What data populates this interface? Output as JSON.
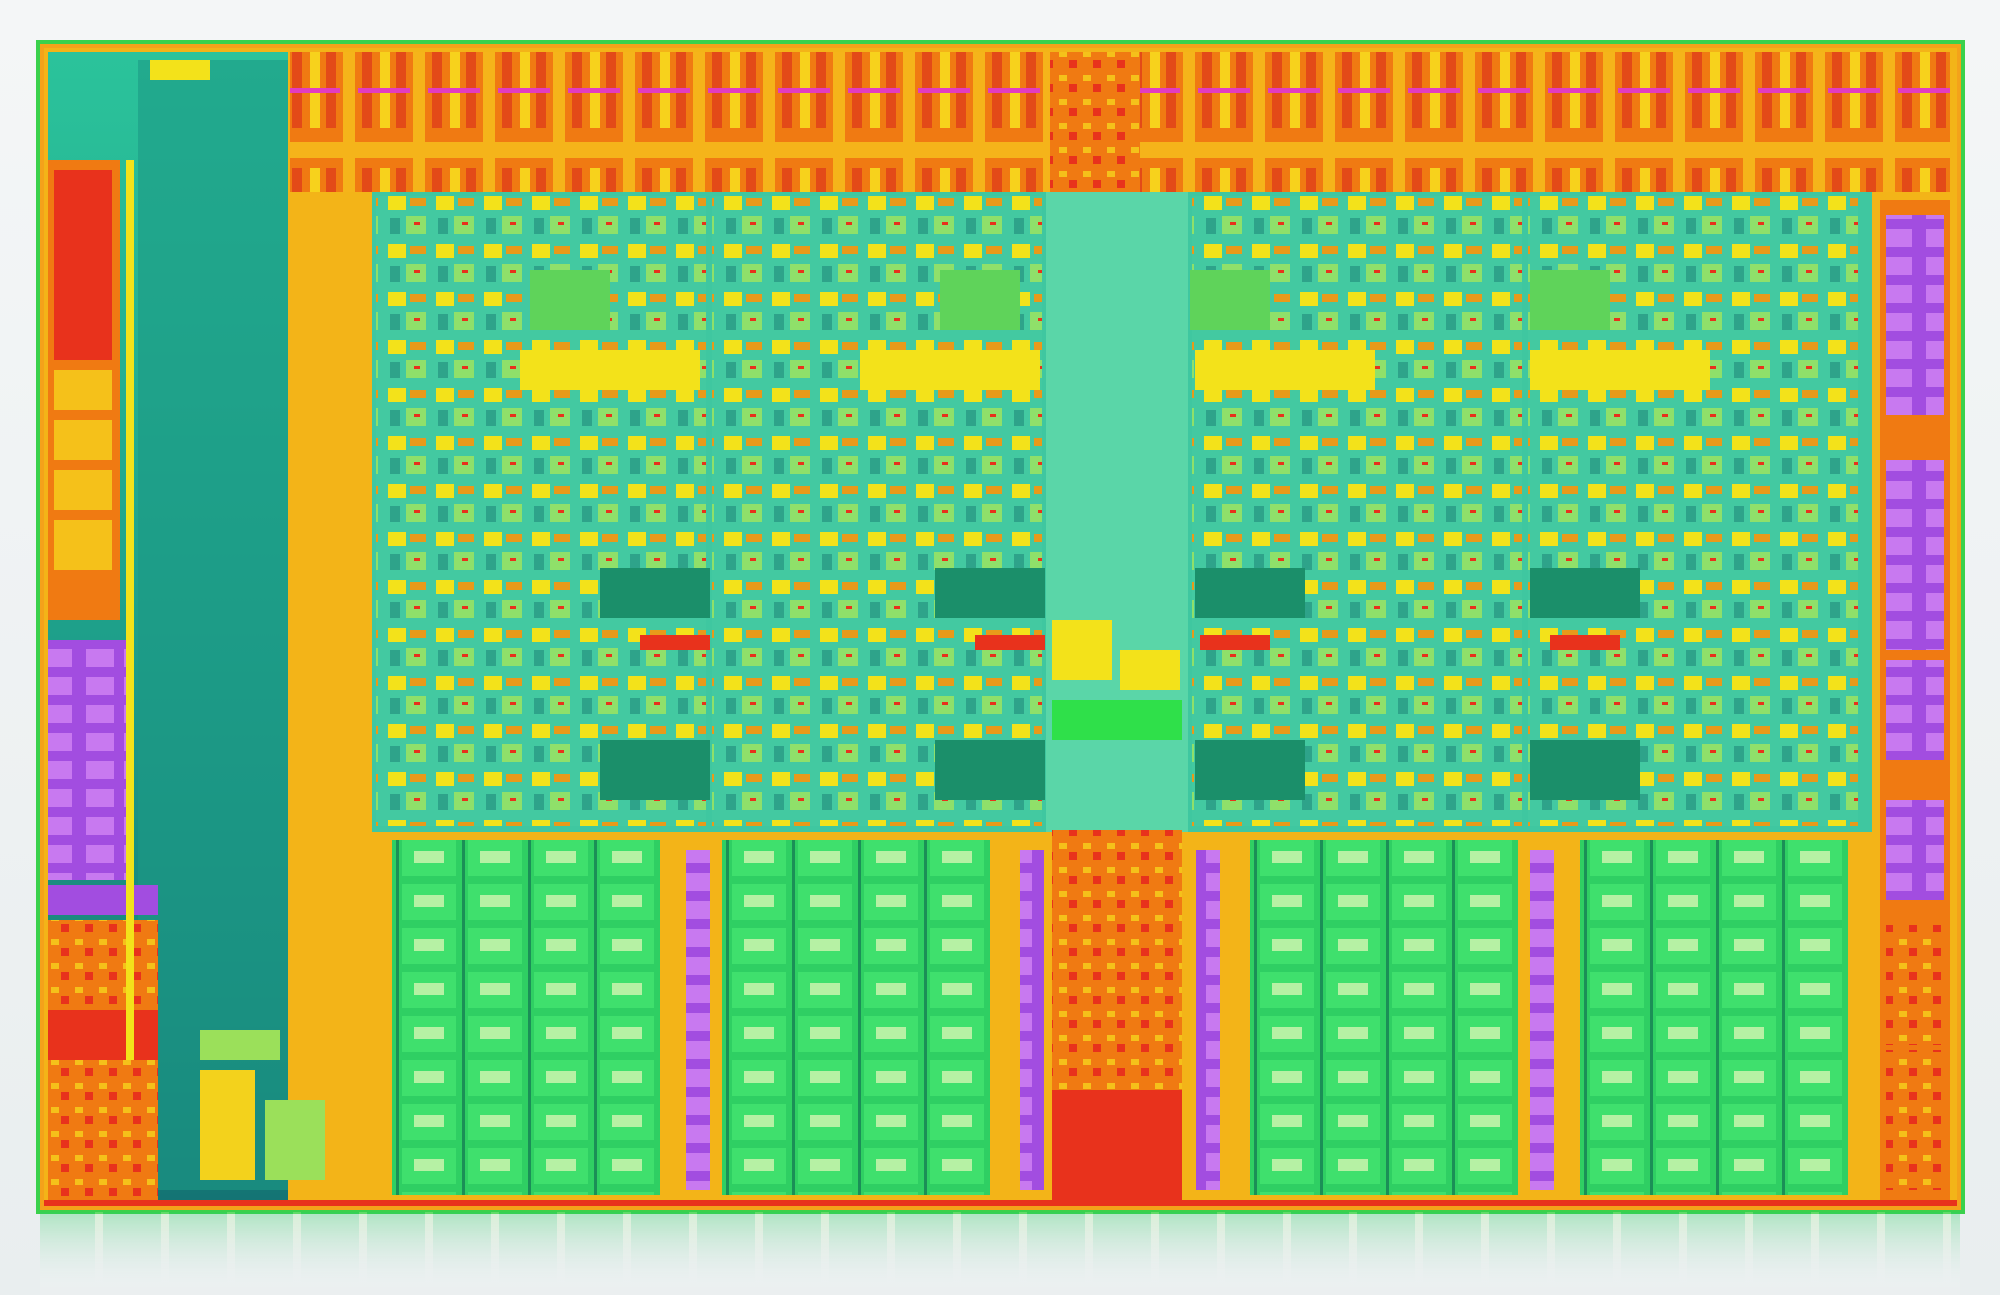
{
  "image": {
    "subject": "processor-die-floorplan",
    "palette": {
      "background": "#f2f5f6",
      "die_border_orange": "#f4a21a",
      "die_border_green": "#3ad14c",
      "cache_green": "#2fcf63",
      "cache_cell_light": "#b4f0a2",
      "core_teal": "#3fc7a0",
      "core_yellow": "#f3e21a",
      "io_orange": "#f07a12",
      "io_red": "#e8321c",
      "controller_purple": "#a24de0",
      "teal_left_block": "#1fa08a",
      "dark_teal": "#136d6a"
    },
    "regions": {
      "top_io_strip_units": 23,
      "core_blocks": 4,
      "cache_columns": 16,
      "right_purple_controllers": 7,
      "left_purple_controllers": 3
    }
  }
}
